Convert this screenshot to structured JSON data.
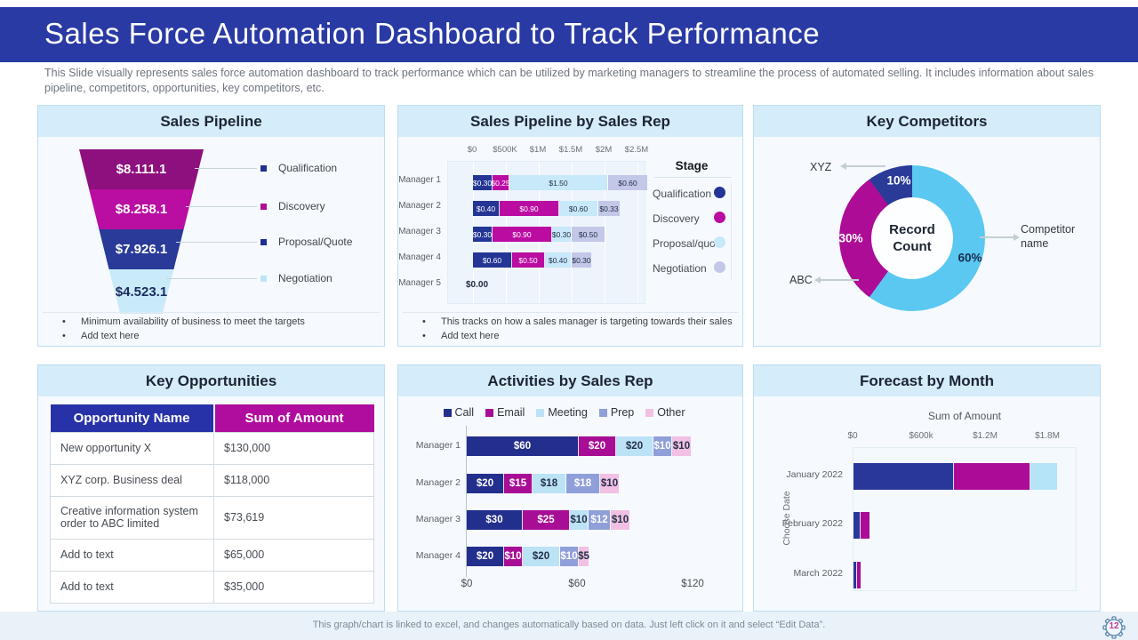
{
  "header": {
    "title": "Sales Force Automation Dashboard to Track Performance",
    "subtitle": "This Slide visually represents sales force automation dashboard to track performance which can be utilized by marketing managers to streamline the process of automated selling. It includes information about sales pipeline, competitors, opportunities, key competitors, etc."
  },
  "panels": {
    "sales_pipeline": {
      "title": "Sales Pipeline",
      "bullets": [
        "Minimum  availability of business to meet the targets",
        "Add text here"
      ]
    },
    "pipeline_by_rep": {
      "title": "Sales Pipeline by Sales Rep",
      "bullets": [
        "This tracks on how a sales manager is targeting towards their sales",
        "Add text here"
      ]
    },
    "key_competitors": {
      "title": "Key Competitors"
    },
    "key_opportunities": {
      "title": "Key Opportunities"
    },
    "activities": {
      "title": "Activities by Sales Rep"
    },
    "forecast": {
      "title": "Forecast by Month"
    }
  },
  "chart_data": [
    {
      "id": "sales-pipeline-funnel",
      "type": "funnel",
      "title": "Sales Pipeline",
      "stages": [
        {
          "label": "Qualification",
          "value": "$8.111.1",
          "color": "#8e0f7e",
          "marker_color": "#1f2f93",
          "value_color": "#ffffff"
        },
        {
          "label": "Discovery",
          "value": "$8.258.1",
          "color": "#b90ea1",
          "marker_color": "#b00c96",
          "value_color": "#ffffff"
        },
        {
          "label": "Proposal/Quote",
          "value": "$7.926.1",
          "color": "#293a99",
          "marker_color": "#1f2f93",
          "value_color": "#ffffff"
        },
        {
          "label": "Negotiation",
          "value": "$4.523.1",
          "color": "#c9ebf9",
          "marker_color": "#bde4f8",
          "value_color": "#1b2a5e"
        }
      ]
    },
    {
      "id": "sales-pipeline-by-sales-rep",
      "type": "bar",
      "stacked": true,
      "orientation": "horizontal",
      "title": "Sales Pipeline by Sales Rep",
      "unit": "$M",
      "categories": [
        "Manager 1",
        "Manager 2",
        "Manager 3",
        "Manager 4",
        "Manager 5"
      ],
      "series": [
        {
          "name": "Qualification",
          "color": "#243595",
          "text": "#ffffff",
          "values": [
            0.3,
            0.4,
            0.3,
            0.6,
            0
          ]
        },
        {
          "name": "Discovery",
          "color": "#bb0ca2",
          "text": "#ffffff",
          "values": [
            0.25,
            0.9,
            0.9,
            0.5,
            0
          ]
        },
        {
          "name": "Proposal/quote",
          "color": "#c7e9fa",
          "text": "#243048",
          "values": [
            1.5,
            0.6,
            0.3,
            0.4,
            0
          ]
        },
        {
          "name": "Negotiation",
          "color": "#c3c7e8",
          "text": "#243048",
          "values": [
            0.6,
            0.33,
            0.5,
            0.3,
            0
          ]
        }
      ],
      "x_ticks": [
        "$0",
        "$500K",
        "$1M",
        "$1.5M",
        "$2M",
        "$2.5M"
      ],
      "xlim": [
        0,
        2.5
      ],
      "legend_title": "Stage",
      "zero_label": "$0.00"
    },
    {
      "id": "key-competitors-donut",
      "type": "pie",
      "donut": true,
      "title": "Key Competitors",
      "center_label": "Record Count",
      "slices": [
        {
          "label": "Competitor name",
          "pct": 60,
          "color": "#5ac8f1"
        },
        {
          "label": "ABC",
          "pct": 30,
          "color": "#ac0c96"
        },
        {
          "label": "XYZ",
          "pct": 10,
          "color": "#2a3b97"
        }
      ]
    },
    {
      "id": "key-opportunities-table",
      "type": "table",
      "title": "Key Opportunities",
      "columns": [
        "Opportunity Name",
        "Sum of Amount"
      ],
      "header_colors": [
        "#2732a8",
        "#b00c9e"
      ],
      "rows": [
        [
          "New opportunity X",
          "$130,000"
        ],
        [
          "XYZ  corp. Business deal",
          "$118,000"
        ],
        [
          "Creative information system order to ABC limited",
          "$73,619"
        ],
        [
          "Add to text",
          "$65,000"
        ],
        [
          "Add to text",
          "$35,000"
        ]
      ]
    },
    {
      "id": "activities-by-sales-rep",
      "type": "bar",
      "stacked": true,
      "orientation": "horizontal",
      "title": "Activities by Sales Rep",
      "categories": [
        "Manager 1",
        "Manager 2",
        "Manager 3",
        "Manager 4"
      ],
      "series": [
        {
          "name": "Call",
          "color": "#232f8c",
          "text": "#ffffff",
          "values": [
            60,
            20,
            30,
            20
          ]
        },
        {
          "name": "Email",
          "color": "#a80d96",
          "text": "#ffffff",
          "values": [
            20,
            15,
            25,
            10
          ]
        },
        {
          "name": "Meeting",
          "color": "#bce2f6",
          "text": "#243048",
          "values": [
            20,
            18,
            10,
            20
          ]
        },
        {
          "name": "Prep",
          "color": "#8f9fd9",
          "text": "#ffffff",
          "values": [
            10,
            18,
            12,
            10
          ]
        },
        {
          "name": "Other",
          "color": "#f2c0e4",
          "text": "#243048",
          "values": [
            10,
            10,
            10,
            5
          ]
        }
      ],
      "x_ticks": [
        "$0",
        "$60",
        "$120"
      ],
      "xlim": [
        0,
        120
      ]
    },
    {
      "id": "forecast-by-month",
      "type": "bar",
      "stacked": true,
      "orientation": "horizontal",
      "title": "Sum of Amount",
      "ylabel": "Choose Date",
      "unit": "$K",
      "categories": [
        "January 2022",
        "February 2022",
        "March 2022"
      ],
      "series": [
        {
          "name": "",
          "color": "#283799",
          "text": "#ffffff",
          "values": [
            880,
            65,
            30
          ]
        },
        {
          "name": "",
          "color": "#ab0b96",
          "text": "#ffffff",
          "values": [
            670,
            80,
            35
          ]
        },
        {
          "name": "",
          "color": "#b5e3f8",
          "text": "#243048",
          "values": [
            235,
            0,
            0
          ]
        }
      ],
      "x_ticks": [
        "$0",
        "$600k",
        "$1.2M",
        "$1.8M"
      ],
      "xlim": [
        0,
        1960
      ]
    }
  ],
  "footer": {
    "note": "This graph/chart is linked to excel,  and changes automatically based on data. Just left click on it and select “Edit Data”.",
    "page": "12"
  }
}
